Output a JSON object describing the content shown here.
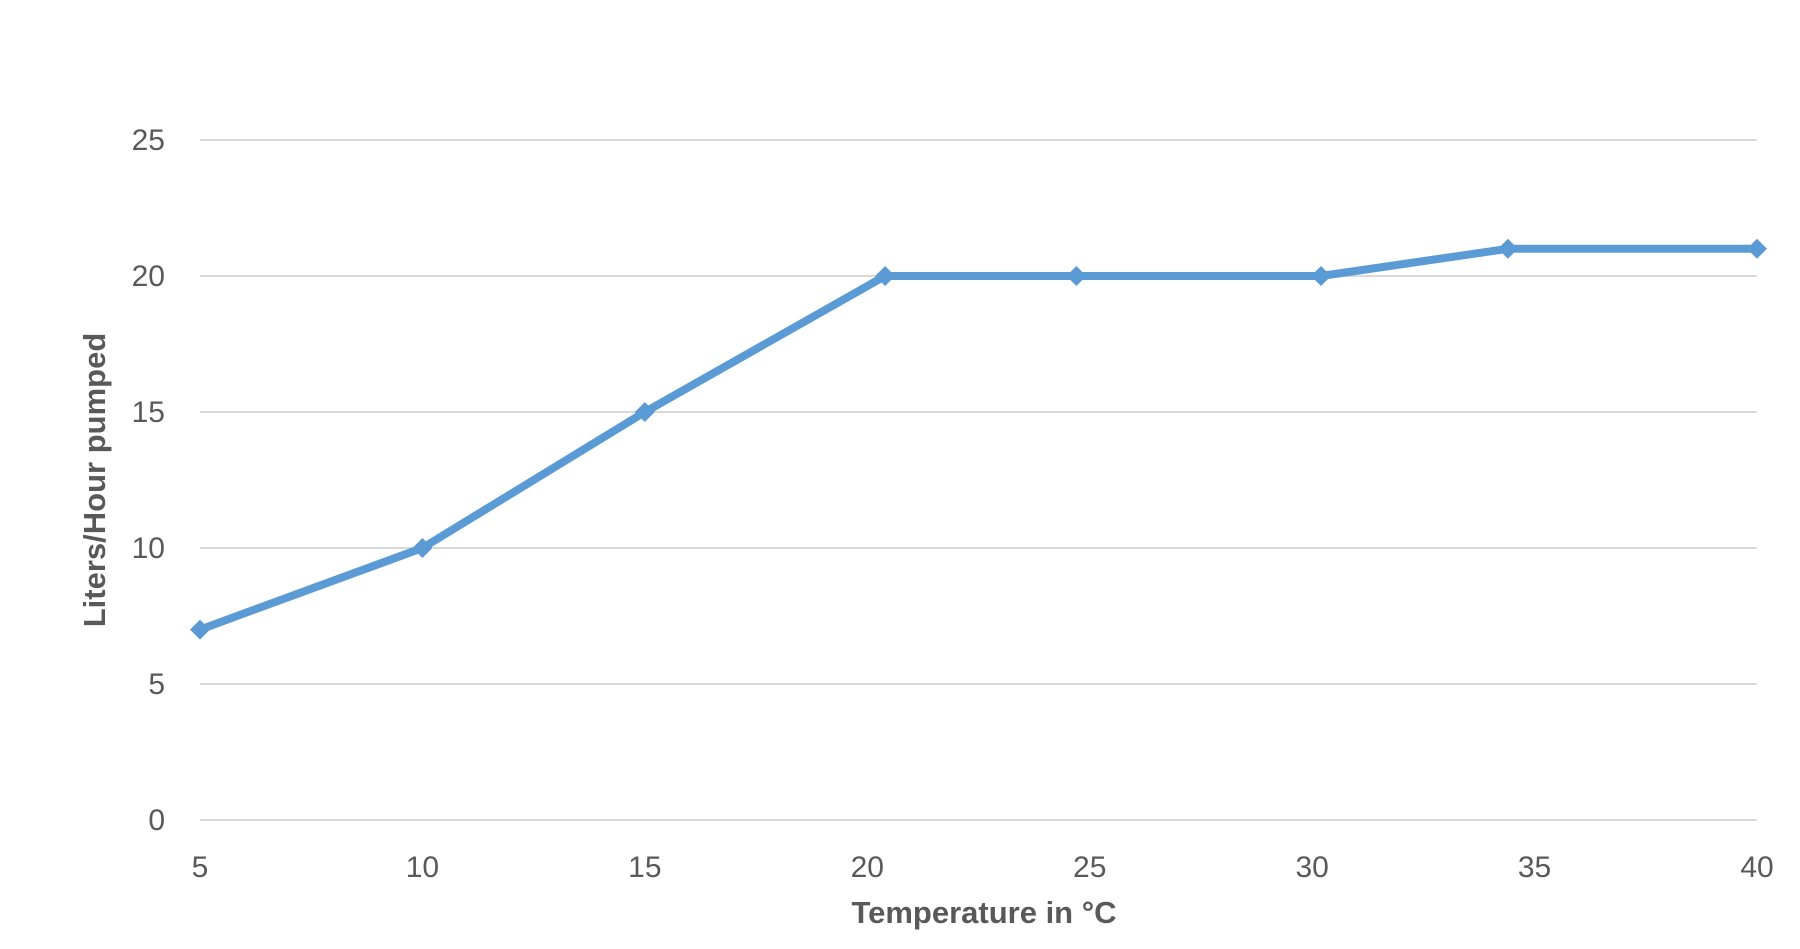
{
  "chart_data": {
    "type": "line",
    "title": "",
    "xlabel": "Temperature in °C",
    "ylabel": "Liters/Hour pumped",
    "x_ticks": [
      "5",
      "10",
      "15",
      "20",
      "25",
      "30",
      "35",
      "40"
    ],
    "y_ticks": [
      "0",
      "5",
      "10",
      "15",
      "20",
      "25"
    ],
    "xlim": [
      5,
      40
    ],
    "ylim": [
      0,
      25
    ],
    "grid": "horizontal",
    "legend": "none",
    "series": [
      {
        "color": "#5b9bd5",
        "marker": "diamond",
        "points": [
          {
            "x": 5,
            "y": 7
          },
          {
            "x": 10,
            "y": 10
          },
          {
            "x": 15,
            "y": 15
          },
          {
            "x": 20.4,
            "y": 20
          },
          {
            "x": 24.7,
            "y": 20
          },
          {
            "x": 30.2,
            "y": 20
          },
          {
            "x": 34.4,
            "y": 21
          },
          {
            "x": 40,
            "y": 21
          }
        ]
      }
    ]
  }
}
